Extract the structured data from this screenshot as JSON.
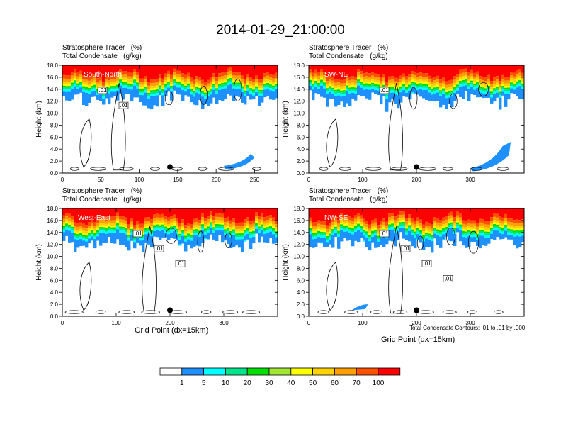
{
  "title": "2014-01-29_21:00:00",
  "panel_header_line1": "Stratosphere Tracer   (%)",
  "panel_header_line2": "Total Condensate   (g/kg)",
  "ylabel": "Height (km)",
  "xlabel": "Grid Point (dx=15km)",
  "contour_note": "Total Condensate Contours: .01 to .01 by .000",
  "chart_data": [
    {
      "type": "heatmap",
      "label": "South-North",
      "ylim": [
        0,
        18
      ],
      "yticks": [
        "0.0",
        "2.0",
        "4.0",
        "6.0",
        "8.0",
        "10.0",
        "12.0",
        "14.0",
        "16.0",
        "18.0"
      ],
      "xlim": [
        0,
        280
      ],
      "xticks": [
        0,
        50,
        100,
        150,
        200,
        250
      ],
      "marker_x": 140,
      "contour_labels": [
        ".01",
        ".01"
      ]
    },
    {
      "type": "heatmap",
      "label": "SW-NE",
      "ylim": [
        0,
        18
      ],
      "yticks": [
        "0.0",
        "2.0",
        "4.0",
        "6.0",
        "8.0",
        "10.0",
        "12.0",
        "14.0",
        "16.0",
        "18.0"
      ],
      "xlim": [
        0,
        400
      ],
      "xticks": [
        0,
        100,
        200,
        300
      ],
      "marker_x": 200,
      "contour_labels": [
        ".01"
      ]
    },
    {
      "type": "heatmap",
      "label": "West-East",
      "ylim": [
        0,
        18
      ],
      "yticks": [
        "0.0",
        "2.0",
        "4.0",
        "6.0",
        "8.0",
        "10.0",
        "12.0",
        "14.0",
        "16.0",
        "18.0"
      ],
      "xlim": [
        0,
        400
      ],
      "xticks": [
        0,
        100,
        200,
        300
      ],
      "marker_x": 200,
      "contour_labels": [
        ".01",
        ".01",
        ".01"
      ]
    },
    {
      "type": "heatmap",
      "label": "NW-SE",
      "ylim": [
        0,
        18
      ],
      "yticks": [
        "0.0",
        "2.0",
        "4.0",
        "6.0",
        "8.0",
        "10.0",
        "12.0",
        "14.0",
        "16.0",
        "18.0"
      ],
      "xlim": [
        0,
        400
      ],
      "xticks": [
        0,
        100,
        200,
        300
      ],
      "marker_x": 200,
      "contour_labels": [
        ".01",
        ".01",
        ".01",
        ".01"
      ]
    }
  ],
  "colorbar": {
    "labels": [
      "1",
      "5",
      "10",
      "20",
      "30",
      "40",
      "50",
      "60",
      "70",
      "100"
    ],
    "colors": [
      "#ffffff",
      "#1e90ff",
      "#00ffff",
      "#00e58c",
      "#00e000",
      "#a0e632",
      "#ffff00",
      "#ffd200",
      "#ffa000",
      "#ff5000",
      "#ff0000"
    ]
  }
}
